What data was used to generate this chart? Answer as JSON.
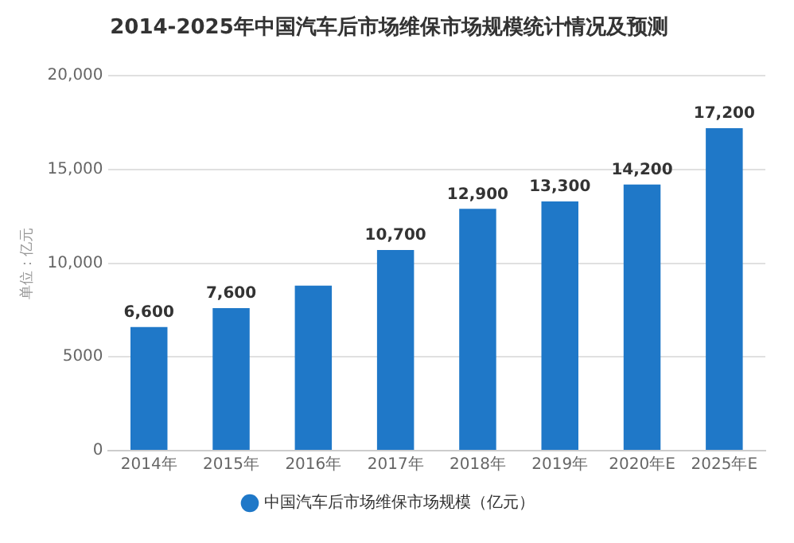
{
  "chart_data": {
    "type": "bar",
    "title": "2014-2025年中国汽车后市场维保市场规模统计情况及预测",
    "ylabel": "单位：亿元",
    "categories": [
      "2014年",
      "2015年",
      "2016年",
      "2017年",
      "2018年",
      "2019年",
      "2020年E",
      "2025年E"
    ],
    "series": [
      {
        "name": "中国汽车后市场维保市场规模（亿元）",
        "color": "#1f78c8",
        "values": [
          6600,
          7600,
          8800,
          10700,
          12900,
          13300,
          14200,
          17200
        ],
        "value_labels": [
          "6,600",
          "7,600",
          null,
          "10,700",
          "12,900",
          "13,300",
          "14,200",
          "17,200"
        ]
      }
    ],
    "ylim": [
      0,
      20000
    ],
    "yticks": [
      0,
      5000,
      {
        "value": 10000,
        "label": "10,000"
      },
      {
        "value": 15000,
        "label": "15,000"
      },
      {
        "value": 20000,
        "label": "20,000"
      }
    ],
    "grid": "y",
    "legend": "bottom"
  }
}
